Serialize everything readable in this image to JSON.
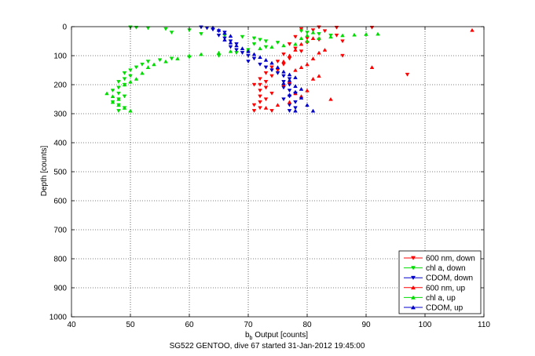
{
  "chart_data": {
    "type": "scatter",
    "title": "",
    "caption": "SG522 GENTOO, dive 67 started 31-Jan-2012 19:45:00",
    "xlabel_main": "b",
    "xlabel_sub": "b",
    "xlabel_rest": " Output [counts]",
    "ylabel": "Depth [counts]",
    "xlim": [
      40,
      110
    ],
    "ylim": [
      0,
      1000
    ],
    "y_reversed": true,
    "xticks": [
      "40",
      "50",
      "60",
      "70",
      "80",
      "90",
      "100",
      "110"
    ],
    "yticks": [
      "0",
      "100",
      "200",
      "300",
      "400",
      "500",
      "600",
      "700",
      "800",
      "900",
      "1000"
    ],
    "grid": true,
    "legend_position": "bottom-right",
    "series": [
      {
        "name": "600 nm, down",
        "color": "#ff0000",
        "marker": "triangle-down",
        "points": [
          [
            82,
            2
          ],
          [
            85,
            3
          ],
          [
            91,
            3
          ],
          [
            79,
            8
          ],
          [
            81,
            12
          ],
          [
            83,
            15
          ],
          [
            85,
            30
          ],
          [
            78,
            35
          ],
          [
            80,
            40
          ],
          [
            82,
            45
          ],
          [
            86,
            50
          ],
          [
            80,
            55
          ],
          [
            77,
            60
          ],
          [
            78,
            75
          ],
          [
            79,
            85
          ],
          [
            86,
            100
          ],
          [
            76,
            95
          ],
          [
            77,
            110
          ],
          [
            75,
            120
          ],
          [
            76,
            130
          ],
          [
            74,
            140
          ],
          [
            75,
            150
          ],
          [
            73,
            160
          ],
          [
            74,
            170
          ],
          [
            72,
            180
          ],
          [
            73,
            190
          ],
          [
            72,
            200
          ],
          [
            71,
            200
          ],
          [
            73,
            210
          ],
          [
            72,
            220
          ],
          [
            74,
            230
          ],
          [
            72,
            240
          ],
          [
            73,
            250
          ],
          [
            72,
            260
          ],
          [
            71,
            270
          ],
          [
            72,
            280
          ],
          [
            71,
            290
          ],
          [
            74,
            290
          ],
          [
            97,
            165
          ]
        ]
      },
      {
        "name": "chl a, down",
        "color": "#00dd00",
        "marker": "triangle-down",
        "points": [
          [
            50,
            2
          ],
          [
            51,
            3
          ],
          [
            53,
            5
          ],
          [
            56,
            8
          ],
          [
            60,
            12
          ],
          [
            57,
            20
          ],
          [
            62,
            25
          ],
          [
            66,
            30
          ],
          [
            69,
            35
          ],
          [
            71,
            40
          ],
          [
            72,
            45
          ],
          [
            73,
            50
          ],
          [
            75,
            55
          ],
          [
            71,
            60
          ],
          [
            73,
            70
          ],
          [
            70,
            80
          ],
          [
            68,
            90
          ],
          [
            65,
            100
          ],
          [
            60,
            105
          ],
          [
            57,
            110
          ],
          [
            55,
            115
          ],
          [
            53,
            120
          ],
          [
            52,
            130
          ],
          [
            51,
            140
          ],
          [
            50,
            150
          ],
          [
            49,
            160
          ],
          [
            50,
            170
          ],
          [
            49,
            180
          ],
          [
            48,
            190
          ],
          [
            49,
            200
          ],
          [
            48,
            210
          ],
          [
            47,
            220
          ],
          [
            48,
            230
          ],
          [
            49,
            240
          ],
          [
            48,
            250
          ],
          [
            47,
            260
          ],
          [
            48,
            270
          ],
          [
            49,
            280
          ],
          [
            48,
            290
          ],
          [
            80,
            20
          ],
          [
            79,
            15
          ],
          [
            82,
            25
          ],
          [
            84,
            30
          ]
        ]
      },
      {
        "name": "CDOM, down",
        "color": "#0000cc",
        "marker": "triangle-down",
        "points": [
          [
            62,
            2
          ],
          [
            63,
            5
          ],
          [
            64,
            10
          ],
          [
            65,
            15
          ],
          [
            66,
            20
          ],
          [
            65,
            30
          ],
          [
            66,
            40
          ],
          [
            67,
            50
          ],
          [
            68,
            60
          ],
          [
            67,
            70
          ],
          [
            68,
            80
          ],
          [
            69,
            90
          ],
          [
            70,
            100
          ],
          [
            71,
            110
          ],
          [
            70,
            120
          ],
          [
            72,
            130
          ],
          [
            73,
            140
          ],
          [
            74,
            150
          ],
          [
            75,
            160
          ],
          [
            76,
            170
          ],
          [
            77,
            180
          ],
          [
            76,
            190
          ],
          [
            77,
            200
          ],
          [
            76,
            210
          ],
          [
            77,
            220
          ],
          [
            78,
            230
          ],
          [
            77,
            240
          ],
          [
            76,
            250
          ],
          [
            78,
            260
          ],
          [
            77,
            270
          ],
          [
            78,
            280
          ],
          [
            77,
            290
          ]
        ]
      },
      {
        "name": "600 nm, up",
        "color": "#ff0000",
        "marker": "triangle-up",
        "points": [
          [
            108,
            12
          ],
          [
            91,
            140
          ],
          [
            81,
            180
          ],
          [
            82,
            170
          ],
          [
            76,
            200
          ],
          [
            77,
            190
          ],
          [
            78,
            150
          ],
          [
            79,
            140
          ],
          [
            80,
            130
          ],
          [
            81,
            110
          ],
          [
            82,
            90
          ],
          [
            83,
            80
          ],
          [
            77,
            260
          ],
          [
            84,
            250
          ],
          [
            73,
            280
          ],
          [
            75,
            270
          ],
          [
            79,
            240
          ],
          [
            78,
            230
          ],
          [
            80,
            220
          ],
          [
            76,
            120
          ],
          [
            77,
            100
          ],
          [
            78,
            80
          ],
          [
            79,
            60
          ],
          [
            80,
            50
          ],
          [
            81,
            40
          ]
        ]
      },
      {
        "name": "chl a, up",
        "color": "#00dd00",
        "marker": "triangle-up",
        "points": [
          [
            46,
            230
          ],
          [
            47,
            240
          ],
          [
            48,
            250
          ],
          [
            47,
            260
          ],
          [
            48,
            270
          ],
          [
            49,
            280
          ],
          [
            50,
            290
          ],
          [
            49,
            200
          ],
          [
            50,
            190
          ],
          [
            51,
            180
          ],
          [
            52,
            160
          ],
          [
            53,
            140
          ],
          [
            54,
            130
          ],
          [
            56,
            120
          ],
          [
            58,
            110
          ],
          [
            60,
            100
          ],
          [
            62,
            95
          ],
          [
            65,
            90
          ],
          [
            67,
            85
          ],
          [
            70,
            80
          ],
          [
            72,
            75
          ],
          [
            74,
            70
          ],
          [
            76,
            65
          ],
          [
            78,
            60
          ],
          [
            80,
            50
          ],
          [
            82,
            40
          ],
          [
            84,
            35
          ],
          [
            86,
            30
          ],
          [
            88,
            28
          ],
          [
            90,
            26
          ],
          [
            92,
            25
          ],
          [
            79,
            40
          ],
          [
            80,
            30
          ],
          [
            81,
            20
          ]
        ]
      },
      {
        "name": "CDOM, up",
        "color": "#0000cc",
        "marker": "triangle-up",
        "points": [
          [
            64,
            3
          ],
          [
            65,
            12
          ],
          [
            66,
            22
          ],
          [
            67,
            32
          ],
          [
            66,
            45
          ],
          [
            67,
            55
          ],
          [
            68,
            65
          ],
          [
            69,
            75
          ],
          [
            70,
            85
          ],
          [
            71,
            95
          ],
          [
            72,
            105
          ],
          [
            73,
            115
          ],
          [
            74,
            125
          ],
          [
            75,
            140
          ],
          [
            76,
            155
          ],
          [
            77,
            165
          ],
          [
            78,
            175
          ],
          [
            77,
            185
          ],
          [
            76,
            195
          ],
          [
            78,
            205
          ],
          [
            79,
            215
          ],
          [
            78,
            225
          ],
          [
            77,
            235
          ],
          [
            79,
            245
          ],
          [
            81,
            290
          ],
          [
            78,
            290
          ],
          [
            80,
            270
          ]
        ]
      }
    ]
  }
}
